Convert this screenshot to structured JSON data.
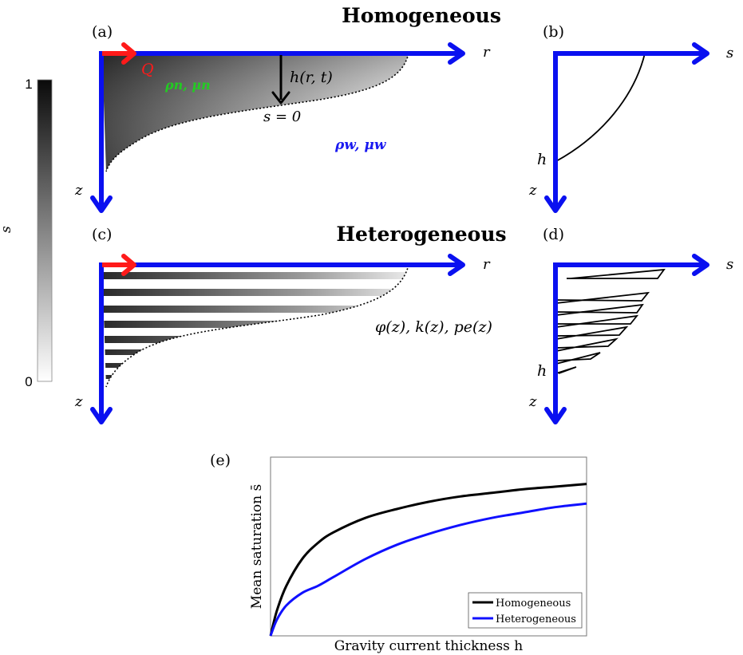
{
  "titles": {
    "top": "Homogeneous",
    "bottom": "Heterogeneous"
  },
  "panel_labels": {
    "a": "(a)",
    "b": "(b)",
    "c": "(c)",
    "d": "(d)",
    "e": "(e)"
  },
  "colorbar": {
    "label": "s",
    "max": "1",
    "min": "0"
  },
  "panel_a": {
    "axis_r": "r",
    "axis_z": "z",
    "flux": "Q",
    "injected_props": "ρn, μn",
    "thickness": "h(r, t)",
    "interface": "s = 0",
    "ambient_props": "ρw, μw"
  },
  "panel_b": {
    "axis_s": "s",
    "axis_z": "z",
    "h_label": "h"
  },
  "panel_c": {
    "axis_r": "r",
    "axis_z": "z",
    "properties": "φ(z), k(z), pe(z)"
  },
  "panel_d": {
    "axis_s": "s",
    "axis_z": "z",
    "h_label": "h"
  },
  "colors": {
    "axis": "#0a10f0",
    "flux": "#ff1a1a",
    "injected": "#22cc22",
    "ambient": "#1a1af0",
    "homogeneous": "#000000",
    "heterogeneous": "#1010ff"
  },
  "chart_data": {
    "type": "line",
    "xlabel": "Gravity current thickness h",
    "ylabel": "Mean saturation s̄",
    "legend_position": "bottom-right",
    "grid": false,
    "x": [
      0,
      0.02,
      0.05,
      0.1,
      0.15,
      0.2,
      0.3,
      0.4,
      0.5,
      0.6,
      0.7,
      0.8,
      0.9,
      1.0
    ],
    "series": [
      {
        "name": "Homogeneous",
        "color": "#000000",
        "values": [
          0,
          0.14,
          0.28,
          0.43,
          0.52,
          0.58,
          0.66,
          0.71,
          0.75,
          0.78,
          0.8,
          0.82,
          0.835,
          0.85
        ]
      },
      {
        "name": "Heterogeneous",
        "color": "#1010ff",
        "values": [
          0,
          0.09,
          0.17,
          0.24,
          0.28,
          0.33,
          0.43,
          0.51,
          0.57,
          0.62,
          0.66,
          0.69,
          0.72,
          0.74
        ]
      }
    ],
    "xlim": [
      0,
      1
    ],
    "ylim": [
      0,
      1
    ]
  }
}
